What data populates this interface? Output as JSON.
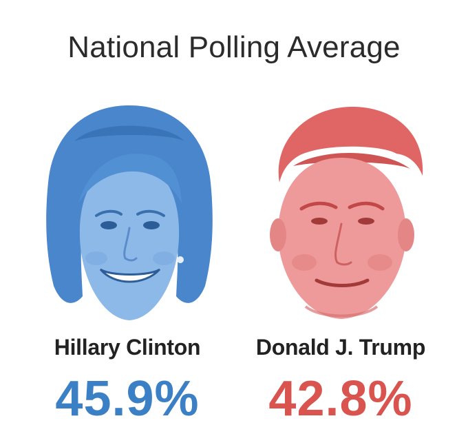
{
  "chart_data": {
    "type": "table",
    "title": "National Polling Average",
    "candidates": [
      {
        "name": "Hillary Clinton",
        "value": 45.9,
        "value_label": "45.9%",
        "color": "#3b7fc4"
      },
      {
        "name": "Donald J. Trump",
        "value": 42.8,
        "value_label": "42.8%",
        "color": "#d9534f"
      }
    ]
  },
  "colors": {
    "clinton_tint": "#5b97d8",
    "trump_tint": "#e06a6a"
  },
  "icons": [
    "clinton-portrait",
    "trump-portrait"
  ]
}
